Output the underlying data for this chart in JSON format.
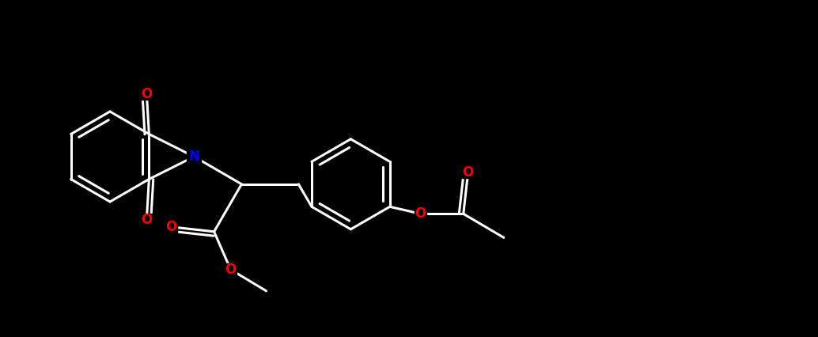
{
  "bg_color": "#000000",
  "bond_color": "#ffffff",
  "N_color": "#0000ff",
  "O_color": "#ff0000",
  "font_size": 12,
  "line_width": 2.2,
  "figsize": [
    10.34,
    4.26
  ],
  "xlim": [
    0,
    17.2
  ],
  "ylim": [
    0,
    7.1
  ]
}
